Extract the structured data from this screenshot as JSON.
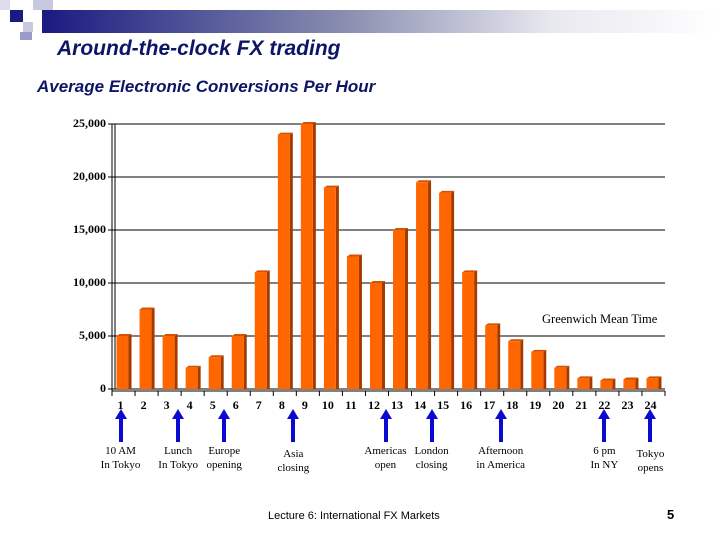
{
  "slide": {
    "title": "Around-the-clock FX trading",
    "subtitle": "Average Electronic Conversions Per Hour",
    "footer": "Lecture 6: International FX Markets",
    "page_number": "5",
    "colors": {
      "title": "#0d1566",
      "bar_front": "#ff6600",
      "bar_side": "#a33a00",
      "arrow": "#0a0ad0",
      "deco_dark": "#1a1a80"
    }
  },
  "chart_data": {
    "type": "bar",
    "title": "Average Electronic Conversions Per Hour",
    "xlabel": "Greenwich Mean Time",
    "ylabel": "",
    "categories": [
      "1",
      "2",
      "3",
      "4",
      "5",
      "6",
      "7",
      "8",
      "9",
      "10",
      "11",
      "12",
      "13",
      "14",
      "15",
      "16",
      "17",
      "18",
      "19",
      "20",
      "21",
      "22",
      "23",
      "24"
    ],
    "values": [
      5000,
      7500,
      5000,
      2000,
      3000,
      5000,
      11000,
      24000,
      25000,
      19000,
      12500,
      10000,
      15000,
      19500,
      18500,
      11000,
      6000,
      4500,
      3500,
      2000,
      1000,
      800,
      900,
      1000
    ],
    "ylim": [
      0,
      25000
    ],
    "yticks": [
      "25,000",
      "20,000",
      "15,000",
      "10,000",
      "5,000",
      "0"
    ],
    "grid": true,
    "legend": null,
    "annotations": [
      {
        "hour_position": 1,
        "line1": "10 AM",
        "line2": "In Tokyo"
      },
      {
        "hour_position": 3.5,
        "line1": "Lunch",
        "line2": "In Tokyo"
      },
      {
        "hour_position": 5.5,
        "line1": "Europe",
        "line2": "opening"
      },
      {
        "hour_position": 8.5,
        "line1": "Asia",
        "line2": "closing"
      },
      {
        "hour_position": 12.5,
        "line1": "Americas",
        "line2": "open"
      },
      {
        "hour_position": 14.5,
        "line1": "London",
        "line2": "closing"
      },
      {
        "hour_position": 17.5,
        "line1": "Afternoon",
        "line2": "in America"
      },
      {
        "hour_position": 22,
        "line1": "6 pm",
        "line2": "In NY"
      },
      {
        "hour_position": 24,
        "line1": "Tokyo",
        "line2": "opens"
      }
    ]
  }
}
